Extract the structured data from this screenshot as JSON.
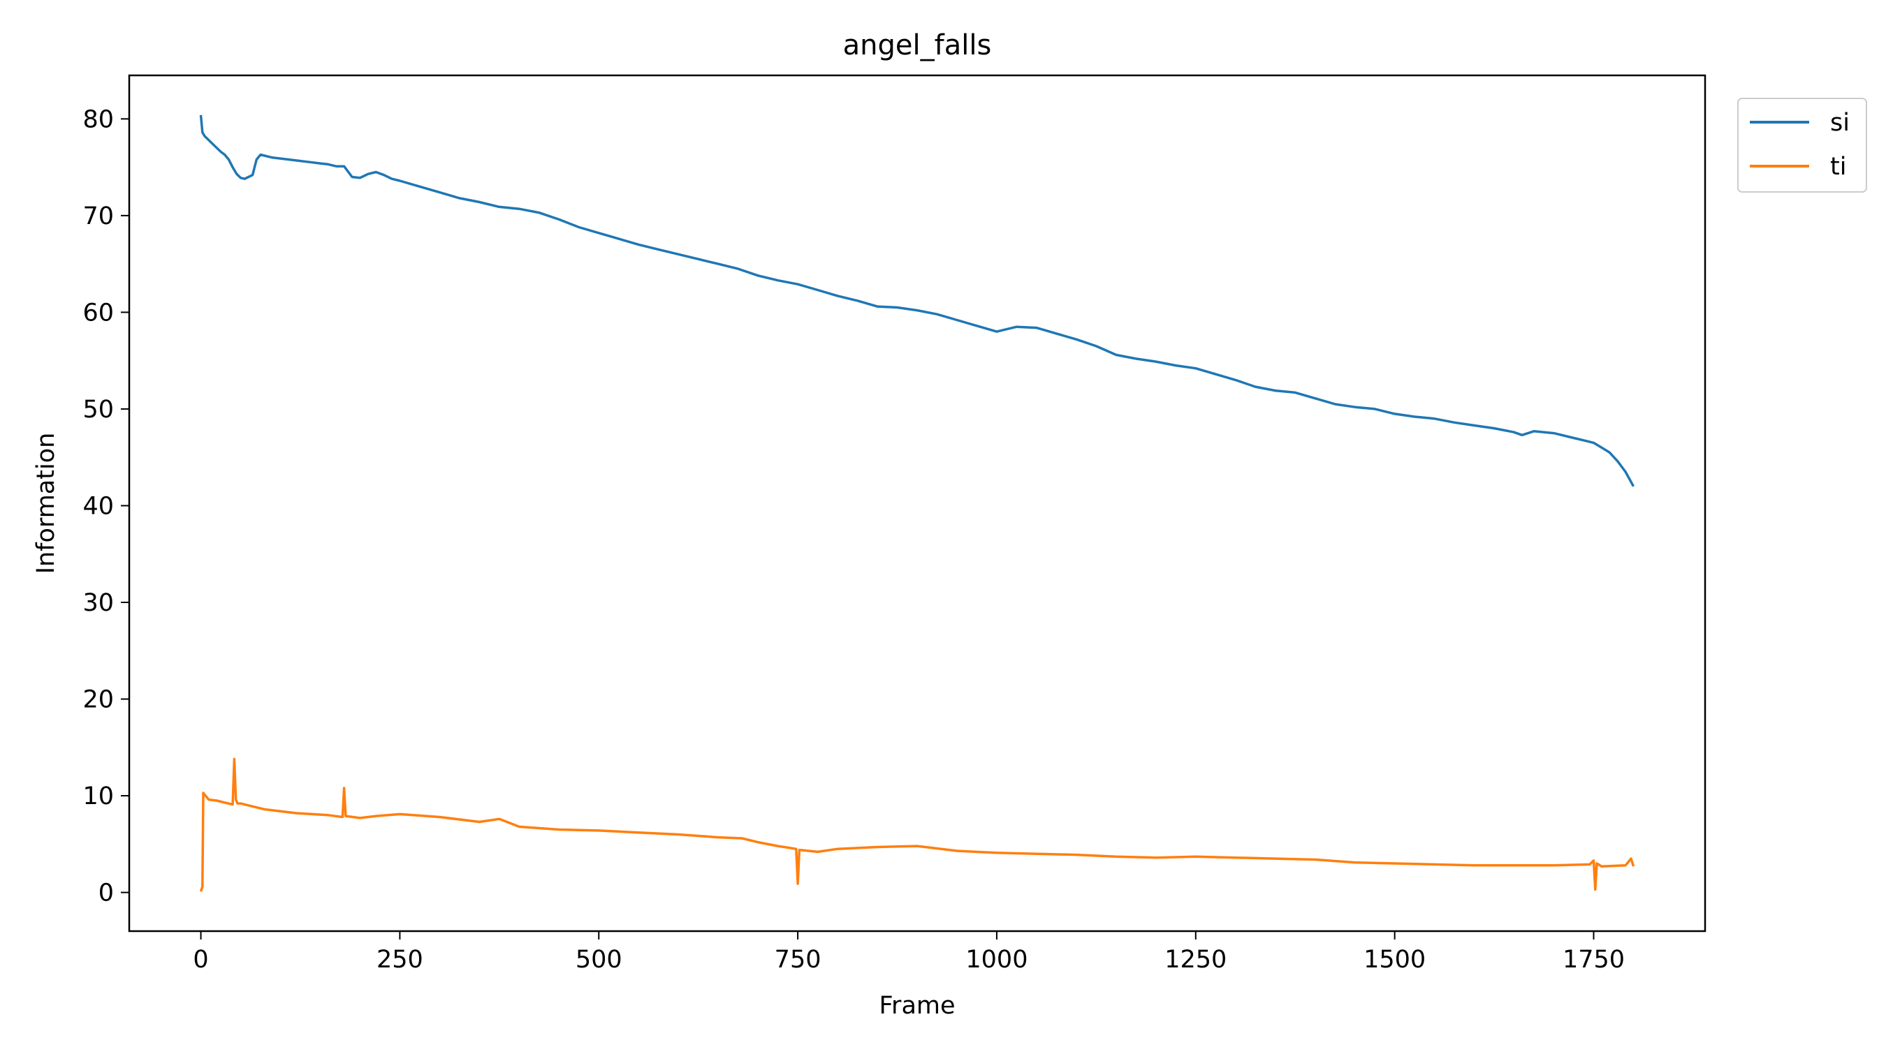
{
  "chart_data": {
    "type": "line",
    "title": "angel_falls",
    "xlabel": "Frame",
    "ylabel": "Information",
    "xlim": [
      -90,
      1890
    ],
    "ylim": [
      -4,
      84.5
    ],
    "xticks": [
      0,
      250,
      500,
      750,
      1000,
      1250,
      1500,
      1750
    ],
    "yticks": [
      0,
      10,
      20,
      30,
      40,
      50,
      60,
      70,
      80
    ],
    "grid": false,
    "legend": {
      "placement": "outside-top-right",
      "entries": [
        "si",
        "ti"
      ]
    },
    "series": [
      {
        "name": "si",
        "color": "#1f77b4",
        "x": [
          0,
          2,
          5,
          10,
          15,
          20,
          25,
          30,
          35,
          40,
          45,
          50,
          55,
          60,
          65,
          70,
          75,
          80,
          90,
          100,
          110,
          120,
          130,
          140,
          150,
          160,
          170,
          180,
          190,
          200,
          210,
          220,
          230,
          240,
          250,
          275,
          300,
          325,
          350,
          375,
          400,
          425,
          450,
          475,
          500,
          525,
          550,
          575,
          600,
          625,
          650,
          675,
          700,
          725,
          750,
          775,
          800,
          825,
          850,
          875,
          900,
          925,
          950,
          975,
          1000,
          1025,
          1050,
          1075,
          1100,
          1125,
          1150,
          1175,
          1200,
          1225,
          1250,
          1275,
          1300,
          1325,
          1350,
          1375,
          1400,
          1425,
          1450,
          1475,
          1500,
          1525,
          1550,
          1575,
          1600,
          1625,
          1650,
          1660,
          1675,
          1700,
          1725,
          1740,
          1750,
          1760,
          1770,
          1780,
          1790,
          1800
        ],
        "y": [
          80.4,
          78.6,
          78.2,
          77.8,
          77.4,
          77.0,
          76.6,
          76.3,
          75.8,
          75.0,
          74.3,
          73.9,
          73.8,
          74.0,
          74.2,
          75.8,
          76.3,
          76.2,
          76.0,
          75.9,
          75.8,
          75.7,
          75.6,
          75.5,
          75.4,
          75.3,
          75.1,
          75.1,
          74.0,
          73.9,
          74.3,
          74.5,
          74.2,
          73.8,
          73.6,
          73.0,
          72.4,
          71.8,
          71.4,
          70.9,
          70.7,
          70.3,
          69.6,
          68.8,
          68.2,
          67.6,
          67.0,
          66.5,
          66.0,
          65.5,
          65.0,
          64.5,
          63.8,
          63.3,
          62.9,
          62.3,
          61.7,
          61.2,
          60.6,
          60.5,
          60.2,
          59.8,
          59.2,
          58.6,
          58.0,
          58.5,
          58.4,
          57.8,
          57.2,
          56.5,
          55.6,
          55.2,
          54.9,
          54.5,
          54.2,
          53.6,
          53.0,
          52.3,
          51.9,
          51.7,
          51.1,
          50.5,
          50.2,
          50.0,
          49.5,
          49.2,
          49.0,
          48.6,
          48.3,
          48.0,
          47.6,
          47.3,
          47.7,
          47.5,
          47.0,
          46.7,
          46.5,
          46.0,
          45.5,
          44.6,
          43.5,
          42.0
        ]
      },
      {
        "name": "ti",
        "color": "#ff7f0e",
        "x": [
          0,
          2,
          3,
          5,
          10,
          20,
          30,
          40,
          42,
          44,
          46,
          50,
          60,
          70,
          80,
          100,
          120,
          140,
          160,
          178,
          180,
          182,
          200,
          220,
          250,
          300,
          350,
          375,
          400,
          450,
          500,
          550,
          600,
          650,
          680,
          700,
          725,
          748,
          750,
          752,
          775,
          800,
          850,
          900,
          950,
          1000,
          1050,
          1100,
          1150,
          1200,
          1250,
          1300,
          1350,
          1400,
          1450,
          1500,
          1550,
          1600,
          1650,
          1700,
          1745,
          1750,
          1752,
          1754,
          1760,
          1790,
          1797,
          1800
        ],
        "y": [
          0.1,
          0.6,
          10.3,
          10.1,
          9.6,
          9.5,
          9.3,
          9.1,
          13.8,
          9.6,
          9.2,
          9.2,
          9.0,
          8.8,
          8.6,
          8.4,
          8.2,
          8.1,
          8.0,
          7.8,
          10.8,
          7.9,
          7.7,
          7.9,
          8.1,
          7.8,
          7.3,
          7.6,
          6.8,
          6.5,
          6.4,
          6.2,
          6.0,
          5.7,
          5.6,
          5.2,
          4.8,
          4.5,
          0.9,
          4.4,
          4.2,
          4.5,
          4.7,
          4.8,
          4.3,
          4.1,
          4.0,
          3.9,
          3.7,
          3.6,
          3.7,
          3.6,
          3.5,
          3.4,
          3.1,
          3.0,
          2.9,
          2.8,
          2.8,
          2.8,
          2.9,
          3.3,
          0.3,
          3.0,
          2.7,
          2.8,
          3.5,
          2.7
        ]
      }
    ]
  }
}
